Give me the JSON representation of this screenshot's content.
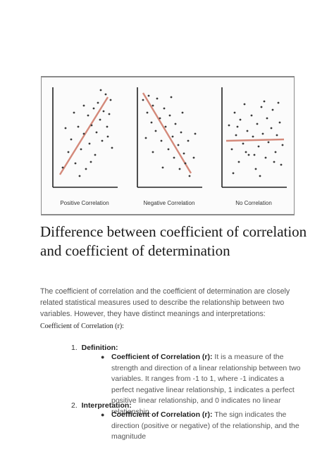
{
  "figure": {
    "captions": [
      "Positive Correlation",
      "Negative Correlation",
      "No Correlation"
    ]
  },
  "heading": "Difference between coefficient of correlation and coefficient of determination",
  "intro": "The coefficient of correlation and the coefficient of determination are closely related statistical measures used to describe the relationship between two variables. However, they have distinct meanings and interpretations:",
  "subheading": "Coefficient of Correlation (r):",
  "list": [
    {
      "number": "1.",
      "label": "Definition:",
      "bullet_term": "Coefficient of Correlation (r):",
      "bullet_text": "It is a measure of the strength and direction of a linear relationship between two variables. It ranges from -1 to 1, where -1 indicates a perfect negative linear relationship, 1 indicates a perfect positive linear relationship, and 0 indicates no linear relationship."
    },
    {
      "number": "2.",
      "label": "Interpretation:",
      "bullet_term": "Coefficient of Correlation (r):",
      "bullet_text": "The sign indicates the direction (positive or negative) of the relationship, and the magnitude"
    }
  ],
  "colors": {
    "trend_line": "#d4897a",
    "dots": "#3a3a3a",
    "axes": "#222222"
  }
}
